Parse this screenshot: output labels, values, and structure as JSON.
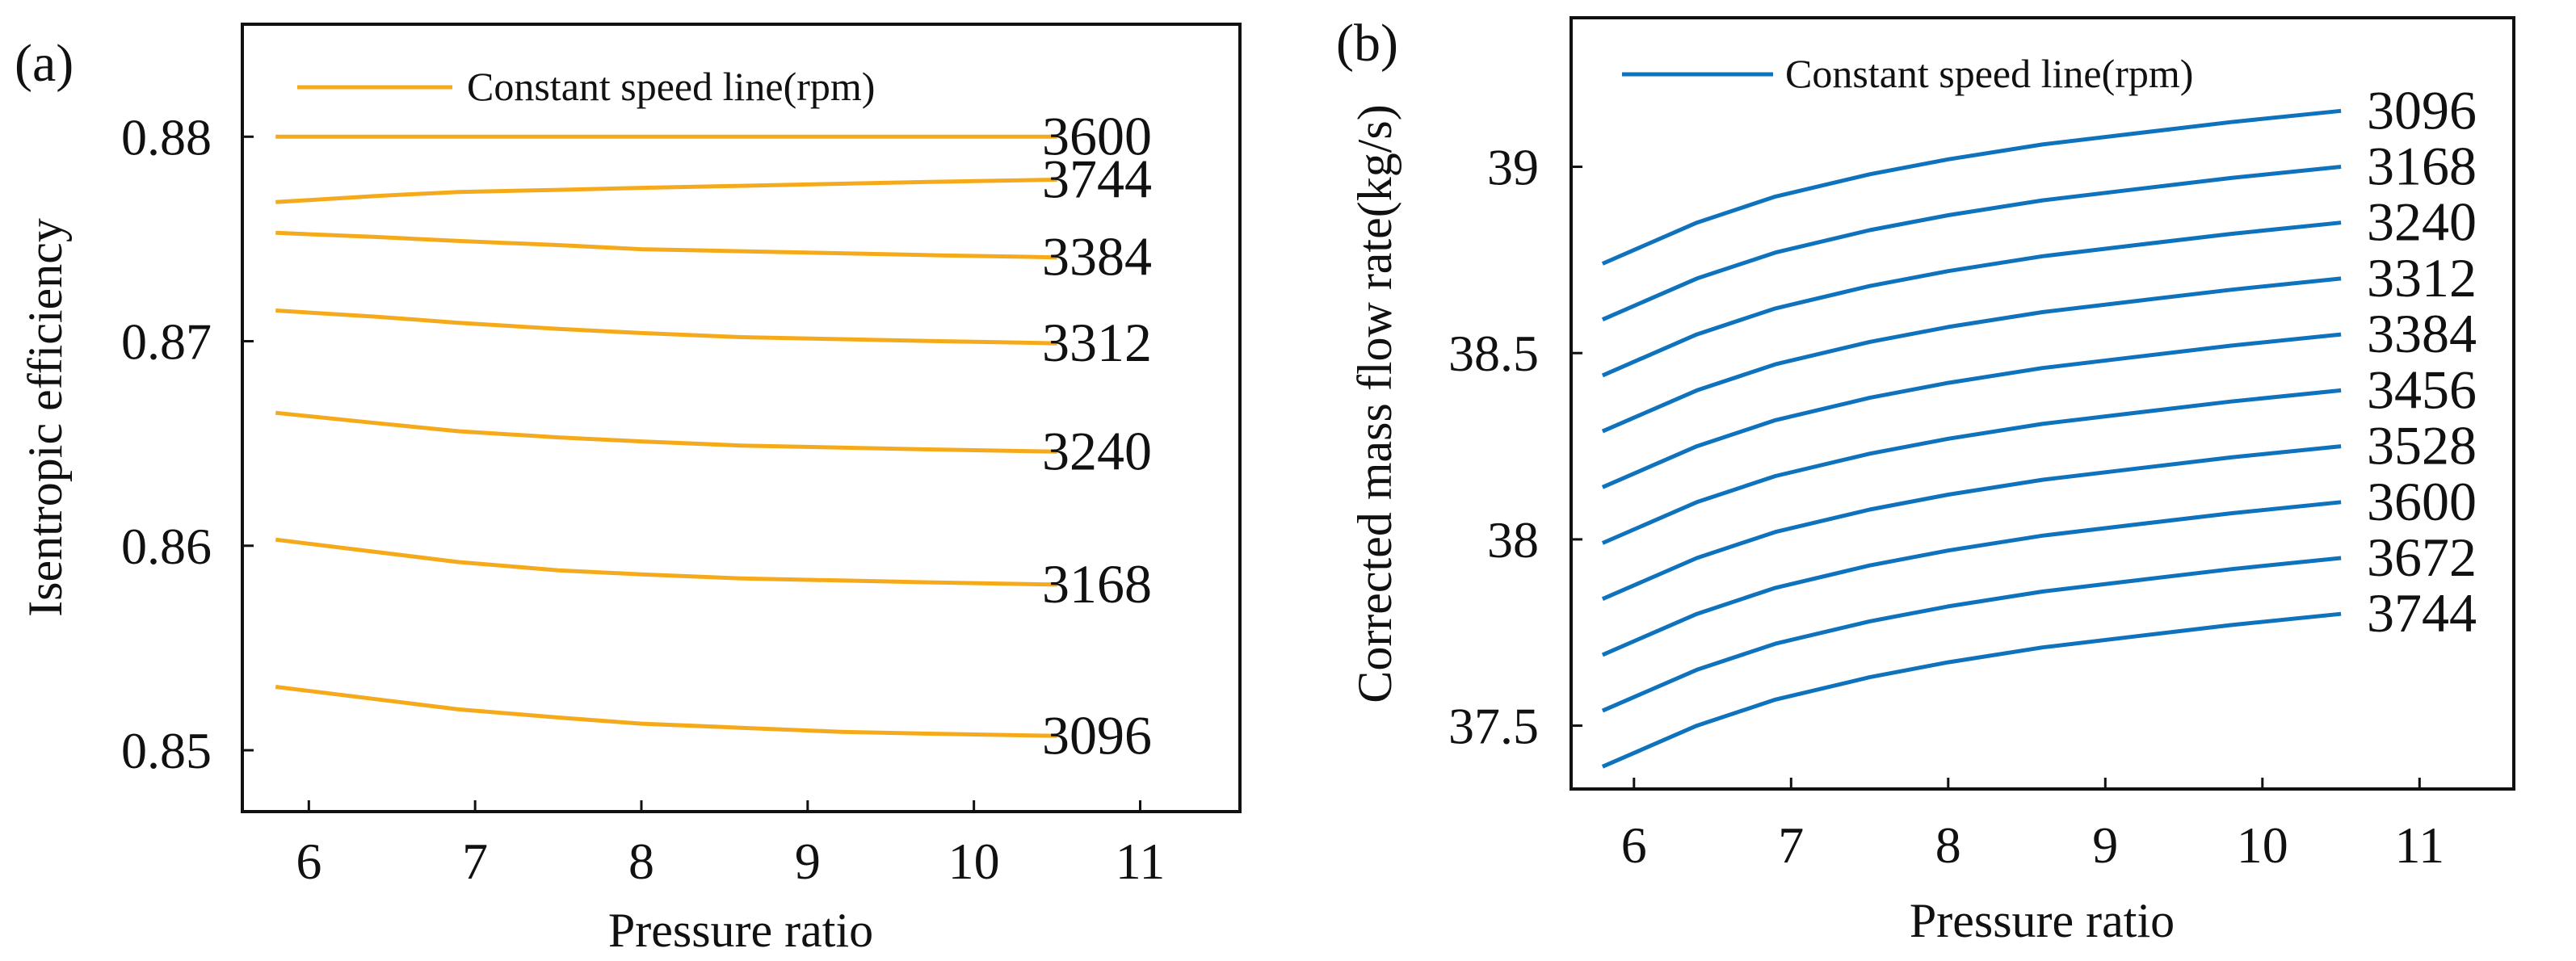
{
  "chart_data": [
    {
      "panel_label": "(a)",
      "type": "line",
      "xlabel": "Pressure ratio",
      "ylabel": "Isentropic efficiency",
      "xlim": [
        5.6,
        11.6
      ],
      "ylim": [
        0.847,
        0.8855
      ],
      "xticks": [
        6,
        7,
        8,
        9,
        10,
        11
      ],
      "yticks": [
        0.85,
        0.86,
        0.87,
        0.88
      ],
      "ytick_labels": [
        "0.85",
        "0.86",
        "0.87",
        "0.88"
      ],
      "grid": false,
      "color": "#F5AA1C",
      "legend": {
        "label": "Constant speed line(rpm)",
        "position": "top-left"
      },
      "x": [
        5.8,
        6.4,
        6.9,
        7.5,
        8.0,
        8.6,
        9.2,
        9.8,
        10.5
      ],
      "series": [
        {
          "name": "3600",
          "values": [
            0.88,
            0.88,
            0.88,
            0.88,
            0.88,
            0.88,
            0.88,
            0.88,
            0.88
          ]
        },
        {
          "name": "3744",
          "values": [
            0.8768,
            0.8771,
            0.8773,
            0.8774,
            0.8775,
            0.8776,
            0.8777,
            0.8778,
            0.8779
          ]
        },
        {
          "name": "3384",
          "values": [
            0.8753,
            0.8751,
            0.8749,
            0.8747,
            0.8745,
            0.8744,
            0.8743,
            0.8742,
            0.8741
          ]
        },
        {
          "name": "3312",
          "values": [
            0.8715,
            0.8712,
            0.8709,
            0.8706,
            0.8704,
            0.8702,
            0.8701,
            0.87,
            0.8699
          ]
        },
        {
          "name": "3240",
          "values": [
            0.8665,
            0.866,
            0.8656,
            0.8653,
            0.8651,
            0.8649,
            0.8648,
            0.8647,
            0.8646
          ]
        },
        {
          "name": "3168",
          "values": [
            0.8603,
            0.8597,
            0.8592,
            0.8588,
            0.8586,
            0.8584,
            0.8583,
            0.8582,
            0.8581
          ]
        },
        {
          "name": "3096",
          "values": [
            0.8531,
            0.8525,
            0.852,
            0.8516,
            0.8513,
            0.8511,
            0.8509,
            0.8508,
            0.8507
          ]
        }
      ]
    },
    {
      "panel_label": "(b)",
      "type": "line",
      "xlabel": "Pressure ratio",
      "ylabel": "Corrected mass flow rate(kg/s)",
      "xlim": [
        5.6,
        11.6
      ],
      "ylim": [
        37.33,
        39.4
      ],
      "xticks": [
        6,
        7,
        8,
        9,
        10,
        11
      ],
      "yticks": [
        37.5,
        38,
        38.5,
        39
      ],
      "ytick_labels": [
        "37.5",
        "38",
        "38.5",
        "39"
      ],
      "grid": false,
      "color": "#0E72BD",
      "legend": {
        "label": "Constant speed line(rpm)",
        "position": "top-left"
      },
      "x": [
        5.8,
        6.4,
        6.9,
        7.5,
        8.0,
        8.6,
        9.2,
        9.8,
        10.5
      ],
      "series": [
        {
          "name": "3096",
          "values": [
            38.74,
            38.85,
            38.92,
            38.98,
            39.02,
            39.06,
            39.09,
            39.12,
            39.15
          ]
        },
        {
          "name": "3168",
          "values": [
            38.59,
            38.7,
            38.77,
            38.83,
            38.87,
            38.91,
            38.94,
            38.97,
            39.0
          ]
        },
        {
          "name": "3240",
          "values": [
            38.44,
            38.55,
            38.62,
            38.68,
            38.72,
            38.76,
            38.79,
            38.82,
            38.85
          ]
        },
        {
          "name": "3312",
          "values": [
            38.29,
            38.4,
            38.47,
            38.53,
            38.57,
            38.61,
            38.64,
            38.67,
            38.7
          ]
        },
        {
          "name": "3384",
          "values": [
            38.14,
            38.25,
            38.32,
            38.38,
            38.42,
            38.46,
            38.49,
            38.52,
            38.55
          ]
        },
        {
          "name": "3456",
          "values": [
            37.99,
            38.1,
            38.17,
            38.23,
            38.27,
            38.31,
            38.34,
            38.37,
            38.4
          ]
        },
        {
          "name": "3528",
          "values": [
            37.84,
            37.95,
            38.02,
            38.08,
            38.12,
            38.16,
            38.19,
            38.22,
            38.25
          ]
        },
        {
          "name": "3600",
          "values": [
            37.69,
            37.8,
            37.87,
            37.93,
            37.97,
            38.01,
            38.04,
            38.07,
            38.1
          ]
        },
        {
          "name": "3672",
          "values": [
            37.54,
            37.65,
            37.72,
            37.78,
            37.82,
            37.86,
            37.89,
            37.92,
            37.95
          ]
        },
        {
          "name": "3744",
          "values": [
            37.39,
            37.5,
            37.57,
            37.63,
            37.67,
            37.71,
            37.74,
            37.77,
            37.8
          ]
        }
      ]
    }
  ]
}
